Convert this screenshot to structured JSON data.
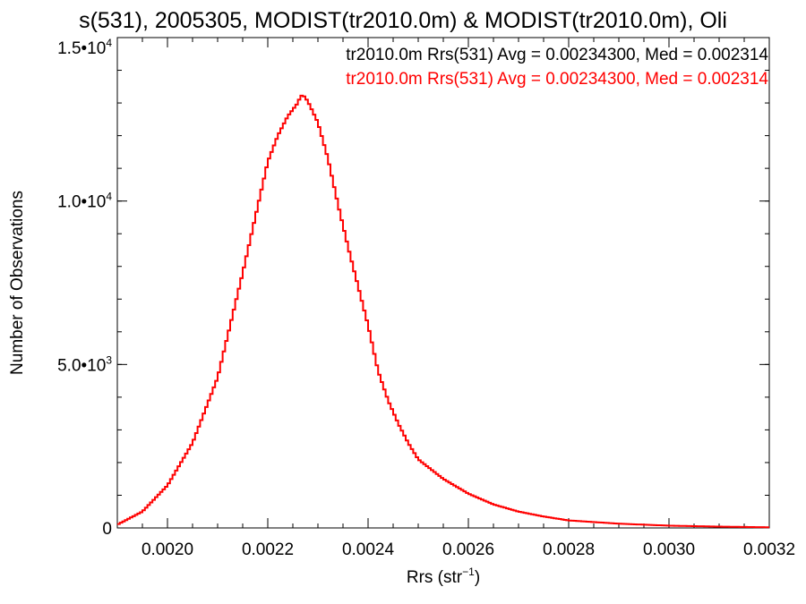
{
  "chart_data": {
    "type": "line",
    "title": "s(531), 2005305, MODIST(tr2010.0m) & MODIST(tr2010.0m), Oli",
    "xlabel": "Rrs (str",
    "xlabel_sup": "−1",
    "xlabel_close": ")",
    "ylabel": "Number of Observations",
    "xlim": [
      0.0019,
      0.0032
    ],
    "ylim": [
      0,
      15000
    ],
    "x_ticks": [
      0.002,
      0.0022,
      0.0024,
      0.0026,
      0.0028,
      0.003,
      0.0032
    ],
    "x_tick_labels": [
      "0.0020",
      "0.0022",
      "0.0024",
      "0.0026",
      "0.0028",
      "0.0030",
      "0.0032"
    ],
    "x_minor_step": 5e-05,
    "y_ticks": [
      0,
      5000,
      10000,
      15000
    ],
    "y_tick_labels": [
      {
        "base": "0",
        "exp": ""
      },
      {
        "base": "5.0•10",
        "exp": "3"
      },
      {
        "base": "1.0•10",
        "exp": "4"
      },
      {
        "base": "1.5•10",
        "exp": "4"
      }
    ],
    "y_minor_step": 1000,
    "grid": false,
    "legend": [
      {
        "text": "tr2010.0m Rrs(531) Avg = 0.00234300, Med = 0.002314",
        "color": "#000000"
      },
      {
        "text": "tr2010.0m Rrs(531) Avg = 0.00234300, Med = 0.002314",
        "color": "#ff0000"
      }
    ],
    "legend_placement": "top-right",
    "series": [
      {
        "color": "#ff0000",
        "step": true,
        "x": [
          0.0019,
          0.00195,
          0.002,
          0.00205,
          0.0021,
          0.00215,
          0.0022,
          0.00222,
          0.00224,
          0.00226,
          0.002265,
          0.00227,
          0.002275,
          0.00228,
          0.0023,
          0.00232,
          0.00234,
          0.00236,
          0.00238,
          0.0024,
          0.00242,
          0.00244,
          0.00246,
          0.00248,
          0.0025,
          0.00255,
          0.0026,
          0.00265,
          0.0027,
          0.00275,
          0.0028,
          0.0029,
          0.003,
          0.0031,
          0.0032
        ],
        "values": [
          100,
          500,
          1300,
          2600,
          4600,
          7800,
          11200,
          12000,
          12600,
          13000,
          13200,
          13250,
          13150,
          13050,
          12400,
          11300,
          9900,
          8600,
          7400,
          6200,
          4800,
          3900,
          3200,
          2600,
          2100,
          1500,
          1050,
          720,
          500,
          350,
          230,
          130,
          70,
          40,
          20
        ]
      }
    ]
  }
}
